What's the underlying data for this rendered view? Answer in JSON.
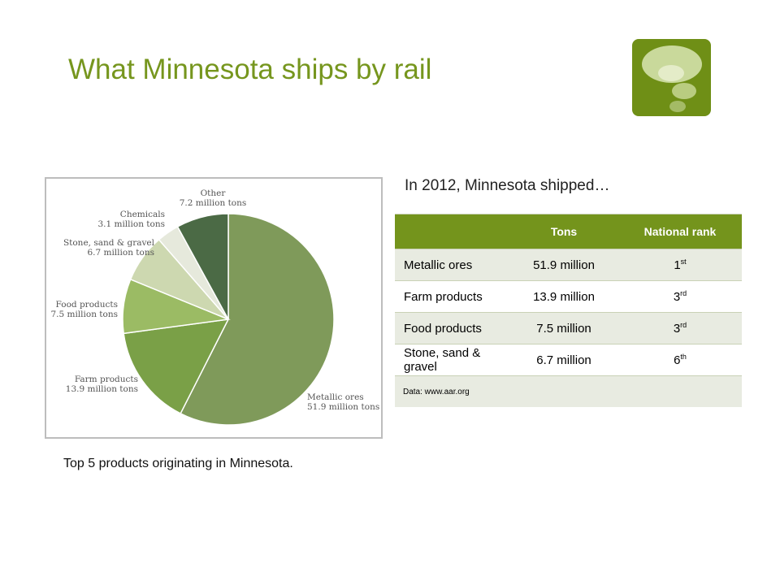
{
  "header": {
    "title": "What Minnesota ships by rail"
  },
  "chart_data": {
    "type": "pie",
    "categories": [
      "Metallic ores",
      "Farm products",
      "Food products",
      "Stone, sand & gravel",
      "Chemicals",
      "Other"
    ],
    "values": [
      51.9,
      13.9,
      7.5,
      6.7,
      3.1,
      7.2
    ],
    "value_labels": [
      "51.9 million tons",
      "13.9 million tons",
      "7.5 million tons",
      "6.7 million tons",
      "3.1 million tons",
      "7.2 million tons"
    ],
    "colors": [
      "#7f9a5a",
      "#7aa047",
      "#9bbb64",
      "#cdd8b0",
      "#e6e9dc",
      "#4b6a45"
    ]
  },
  "caption": "Top 5 products originating in Minnesota.",
  "intro": "In 2012, Minnesota shipped…",
  "table": {
    "columns": [
      "Tons",
      "National rank"
    ],
    "rows": [
      {
        "product": "Metallic ores",
        "tons": "51.9 million",
        "rank": "1",
        "rank_suffix": "st"
      },
      {
        "product": "Farm products",
        "tons": "13.9 million",
        "rank": "3",
        "rank_suffix": "rd"
      },
      {
        "product": "Food products",
        "tons": "7.5 million",
        "rank": "3",
        "rank_suffix": "rd"
      },
      {
        "product": "Stone, sand & gravel",
        "tons": "6.7 million",
        "rank": "6",
        "rank_suffix": "th"
      }
    ],
    "source": "Data: www.aar.org"
  }
}
